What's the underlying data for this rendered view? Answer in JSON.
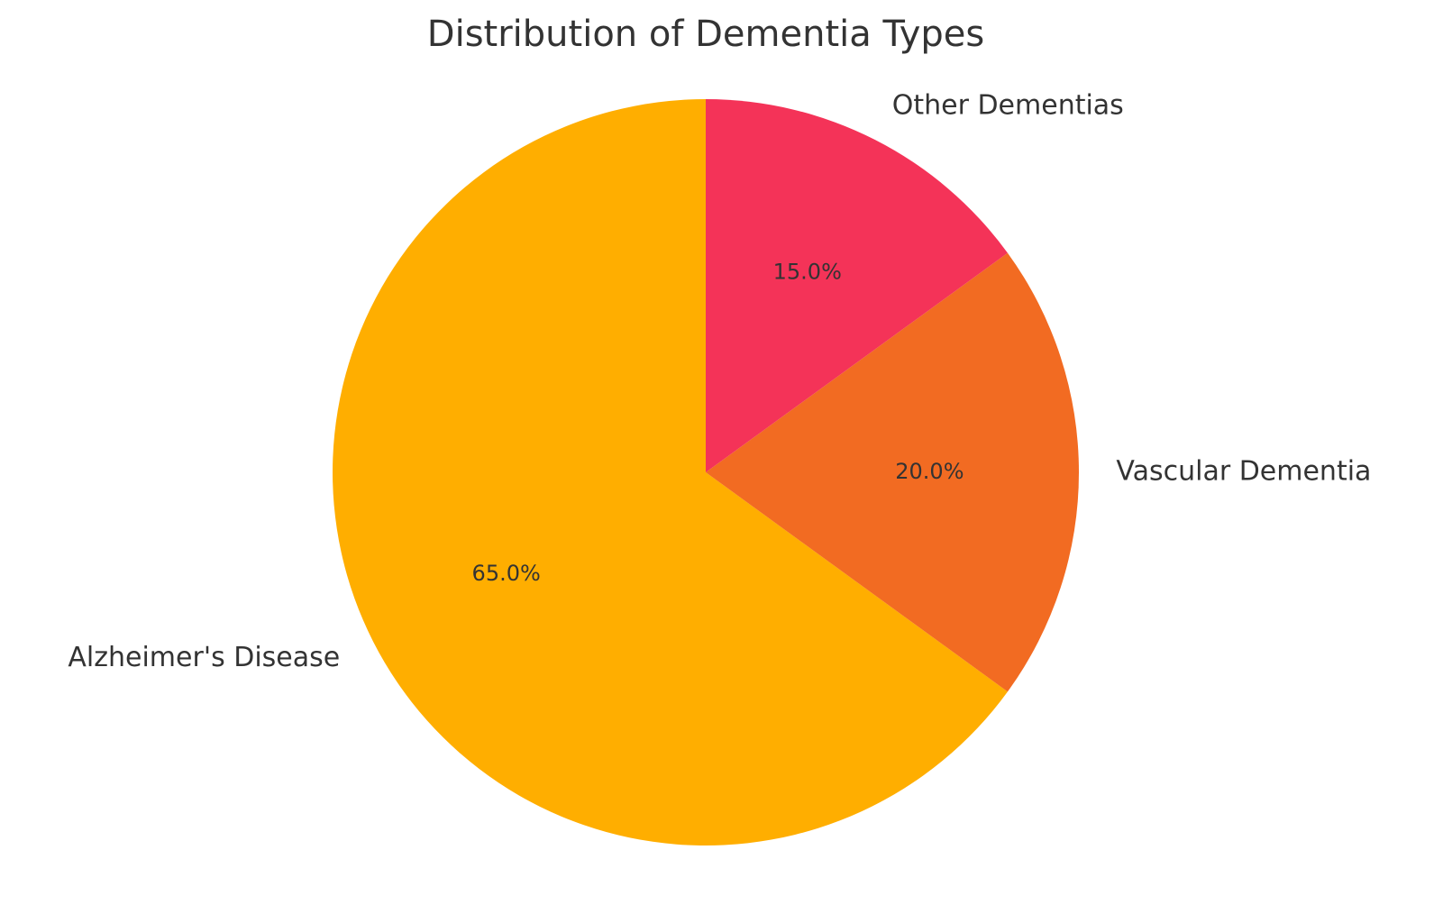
{
  "chart_data": {
    "type": "pie",
    "title": "Distribution of Dementia Types",
    "categories": [
      "Alzheimer's Disease",
      "Vascular Dementia",
      "Other Dementias"
    ],
    "values": [
      65,
      20,
      15
    ],
    "value_labels": [
      "65.0%",
      "20.0%",
      "15.0%"
    ],
    "colors": [
      "#ffae00",
      "#f26b22",
      "#f43358"
    ]
  }
}
